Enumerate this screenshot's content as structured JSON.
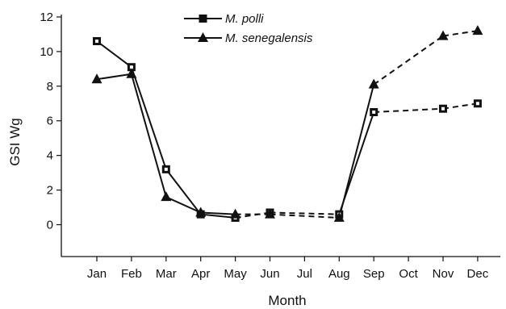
{
  "chart_data": {
    "type": "line",
    "title": "",
    "xlabel": "Month",
    "ylabel": "GSI Wg",
    "categories": [
      "Jan",
      "Feb",
      "Mar",
      "Apr",
      "May",
      "Jun",
      "Jul",
      "Aug",
      "Sep",
      "Oct",
      "Nov",
      "Dec"
    ],
    "yticks": [
      "0",
      "2",
      "4",
      "6",
      "8",
      "10",
      "12"
    ],
    "ylim": [
      -2,
      12
    ],
    "grid": false,
    "legend_position": "top-center",
    "series": [
      {
        "name": "M. polli",
        "marker": "square",
        "values": [
          10.6,
          9.1,
          3.2,
          0.6,
          0.4,
          0.7,
          null,
          0.6,
          6.5,
          null,
          6.7,
          7.0
        ]
      },
      {
        "name": "M. senegalensis",
        "marker": "triangle",
        "values": [
          8.4,
          8.7,
          1.6,
          0.7,
          0.6,
          0.6,
          null,
          0.4,
          8.1,
          null,
          10.9,
          11.2
        ]
      }
    ],
    "line_style": "solid, dashed across months with missing data (Jun-Aug, Sep-Dec)"
  },
  "colors": {
    "line": "#111111",
    "marker": "#111111",
    "background": "#ffffff"
  }
}
